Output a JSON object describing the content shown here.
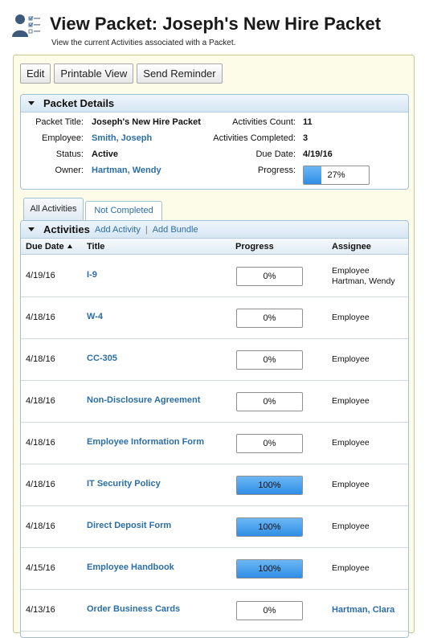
{
  "header": {
    "title": "View Packet: Joseph's New Hire Packet",
    "subtitle": "View the current Activities associated with a Packet.",
    "icon": "user-checklist-icon"
  },
  "toolbar": {
    "edit_label": "Edit",
    "printable_label": "Printable View",
    "reminder_label": "Send Reminder"
  },
  "details": {
    "section_title": "Packet Details",
    "packet_title_label": "Packet Title:",
    "packet_title": "Joseph's New Hire Packet",
    "employee_label": "Employee:",
    "employee": "Smith, Joseph",
    "status_label": "Status:",
    "status": "Active",
    "owner_label": "Owner:",
    "owner": "Hartman, Wendy",
    "activities_count_label": "Activities Count:",
    "activities_count": "11",
    "activities_completed_label": "Activities Completed:",
    "activities_completed": "3",
    "due_date_label": "Due Date:",
    "due_date": "4/19/16",
    "progress_label": "Progress:",
    "progress_text": "27%",
    "progress_value": 27
  },
  "tabs": [
    {
      "label": "All Activities",
      "active": true
    },
    {
      "label": "Not Completed",
      "active": false
    }
  ],
  "activities": {
    "section_title": "Activities",
    "add_activity": "Add Activity",
    "add_bundle": "Add Bundle",
    "columns": {
      "due_date": "Due Date",
      "title": "Title",
      "progress": "Progress",
      "assignee": "Assignee"
    },
    "rows": [
      {
        "date": "4/19/16",
        "title": "I-9",
        "progress": 0,
        "progress_text": "0%",
        "assignee": "Employee",
        "assignee2": "Hartman, Wendy"
      },
      {
        "date": "4/18/16",
        "title": "W-4",
        "progress": 0,
        "progress_text": "0%",
        "assignee": "Employee"
      },
      {
        "date": "4/18/16",
        "title": "CC-305",
        "progress": 0,
        "progress_text": "0%",
        "assignee": "Employee"
      },
      {
        "date": "4/18/16",
        "title": "Non-Disclosure Agreement",
        "progress": 0,
        "progress_text": "0%",
        "assignee": "Employee"
      },
      {
        "date": "4/18/16",
        "title": "Employee Information Form",
        "progress": 0,
        "progress_text": "0%",
        "assignee": "Employee"
      },
      {
        "date": "4/18/16",
        "title": "IT Security Policy",
        "progress": 100,
        "progress_text": "100%",
        "assignee": "Employee"
      },
      {
        "date": "4/18/16",
        "title": "Direct Deposit Form",
        "progress": 100,
        "progress_text": "100%",
        "assignee": "Employee"
      },
      {
        "date": "4/15/16",
        "title": "Employee Handbook",
        "progress": 100,
        "progress_text": "100%",
        "assignee": "Employee"
      },
      {
        "date": "4/13/16",
        "title": "Order Business Cards",
        "progress": 0,
        "progress_text": "0%",
        "assignee": "Hartman, Clara",
        "assignee_link": true
      }
    ]
  },
  "colors": {
    "link": "#2b6ea6",
    "progress_fill": "#2f8ee4",
    "panel_border": "#9ec0d8"
  }
}
